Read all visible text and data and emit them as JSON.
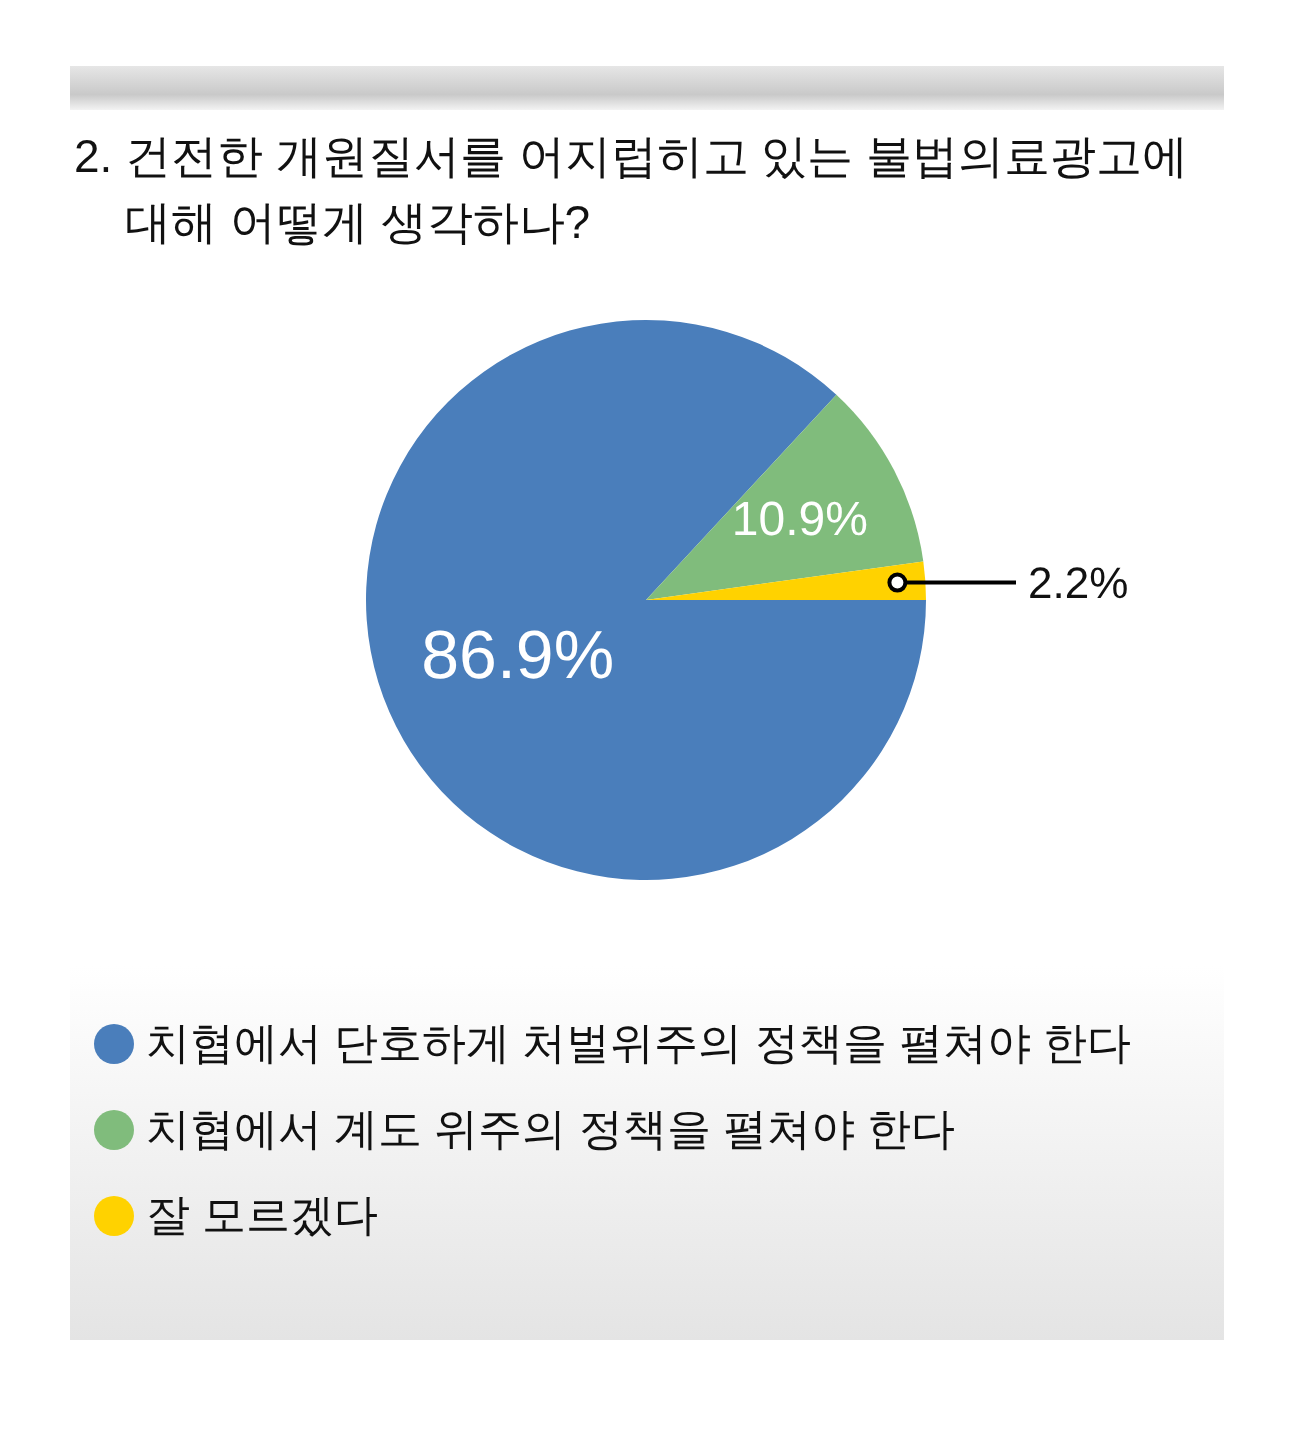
{
  "chart_data": {
    "type": "pie",
    "title": "2. 건전한 개원질서를 어지럽히고 있는 불법의료광고에 대해 어떻게 생각하나?",
    "categories": [
      "치협에서 단호하게 처벌위주의 정책을 펼쳐야 한다",
      "치협에서 계도 위주의 정책을 펼쳐야 한다",
      "잘 모르겠다"
    ],
    "values": [
      86.9,
      10.9,
      2.2
    ],
    "colors": [
      "#4a7ebb",
      "#80bc7c",
      "#ffd200"
    ],
    "value_labels": [
      "86.9%",
      "10.9%",
      "2.2%"
    ],
    "legend": "bottom"
  }
}
